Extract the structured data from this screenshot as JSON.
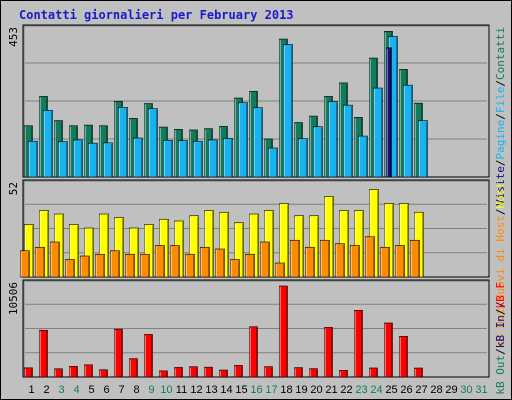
{
  "title": "Contatti giornalieri per February 2013",
  "chart_data": [
    {
      "type": "bar",
      "panel": "top",
      "ymax_label": "453",
      "ylim": [
        0,
        453
      ],
      "grid": true,
      "series": [
        {
          "name": "Pagine",
          "color": "#107c5e",
          "values": [
            159,
            250,
            175,
            159,
            161,
            159,
            235,
            182,
            228,
            155,
            148,
            146,
            150,
            157,
            245,
            266,
            118,
            428,
            169,
            189,
            250,
            292,
            185,
            369,
            452,
            334,
            229
          ]
        },
        {
          "name": "File",
          "color": "#18b3ee",
          "values": [
            111,
            207,
            110,
            115,
            105,
            106,
            216,
            121,
            212,
            114,
            113,
            111,
            115,
            120,
            231,
            215,
            90,
            411,
            119,
            156,
            234,
            223,
            127,
            276,
            436,
            285,
            175
          ]
        },
        {
          "name": "Visite",
          "color": "#10107e",
          "values": [
            0,
            0,
            0,
            0,
            0,
            0,
            0,
            0,
            0,
            0,
            0,
            0,
            0,
            0,
            0,
            0,
            0,
            0,
            0,
            0,
            0,
            0,
            0,
            0,
            401,
            0,
            0
          ]
        }
      ],
      "right_labels": [
        {
          "text": "Contatti",
          "color": "#107c5e"
        },
        {
          "text": "File",
          "color": "#18b3ee"
        },
        {
          "text": "Pagine",
          "color": "#18b3ee"
        },
        {
          "text": "Visite",
          "color": "#10107e"
        }
      ]
    },
    {
      "type": "bar",
      "panel": "middle",
      "ymax_label": "52",
      "ylim": [
        0,
        52
      ],
      "grid": true,
      "series": [
        {
          "name": "Host",
          "color": "#ffff00",
          "values": [
            30,
            38,
            36,
            30,
            28,
            36,
            34,
            28,
            30,
            33,
            32,
            35,
            38,
            37,
            31,
            36,
            38,
            42,
            35,
            35,
            46,
            38,
            38,
            50,
            42,
            42,
            37
          ]
        },
        {
          "name": "Nuovi di Host",
          "color": "#ff8c00",
          "values": [
            15,
            17,
            20,
            10,
            12,
            13,
            15,
            13,
            13,
            18,
            18,
            13,
            17,
            16,
            10,
            13,
            20,
            8,
            21,
            17,
            21,
            19,
            18,
            23,
            17,
            18,
            21
          ]
        }
      ],
      "right_labels": [
        {
          "text": "Host",
          "color": "#ffff00"
        },
        {
          "text": "Nuovi di Host",
          "color": "#ff8c00"
        },
        {
          "text": "kB Out",
          "color": "#ff8c00"
        }
      ]
    },
    {
      "type": "bar",
      "panel": "bottom",
      "ymax_label": "10506",
      "ylim": [
        0,
        10506
      ],
      "grid": true,
      "series": [
        {
          "name": "kB F",
          "color": "#ff0000",
          "values": [
            1060,
            5397,
            948,
            1230,
            1406,
            838,
            5527,
            2121,
            4914,
            708,
            1103,
            1186,
            1135,
            801,
            1333,
            5803,
            1192,
            10506,
            1086,
            959,
            5725,
            771,
            7701,
            1043,
            6237,
            4699,
            1037
          ]
        }
      ],
      "right_labels": [
        {
          "text": "kB F",
          "color": "#ff0000"
        },
        {
          "text": "kB In",
          "color": "#10107e"
        },
        {
          "text": "kB Out",
          "color": "#107c5e"
        }
      ]
    }
  ],
  "x_axis": {
    "days": [
      "1",
      "2",
      "3",
      "4",
      "5",
      "6",
      "7",
      "8",
      "9",
      "10",
      "11",
      "12",
      "13",
      "14",
      "15",
      "16",
      "17",
      "18",
      "19",
      "20",
      "21",
      "22",
      "23",
      "24",
      "25",
      "26",
      "27",
      "28",
      "29",
      "30",
      "31"
    ],
    "colors": [
      "#000000",
      "#000000",
      "#107c5e",
      "#107c5e",
      "#000000",
      "#000000",
      "#000000",
      "#000000",
      "#107c5e",
      "#107c5e",
      "#000000",
      "#000000",
      "#000000",
      "#000000",
      "#000000",
      "#107c5e",
      "#107c5e",
      "#000000",
      "#000000",
      "#000000",
      "#000000",
      "#000000",
      "#107c5e",
      "#107c5e",
      "#000000",
      "#000000",
      "#000000",
      "#000000",
      "#000000",
      "#107c5e",
      "#107c5e"
    ]
  }
}
